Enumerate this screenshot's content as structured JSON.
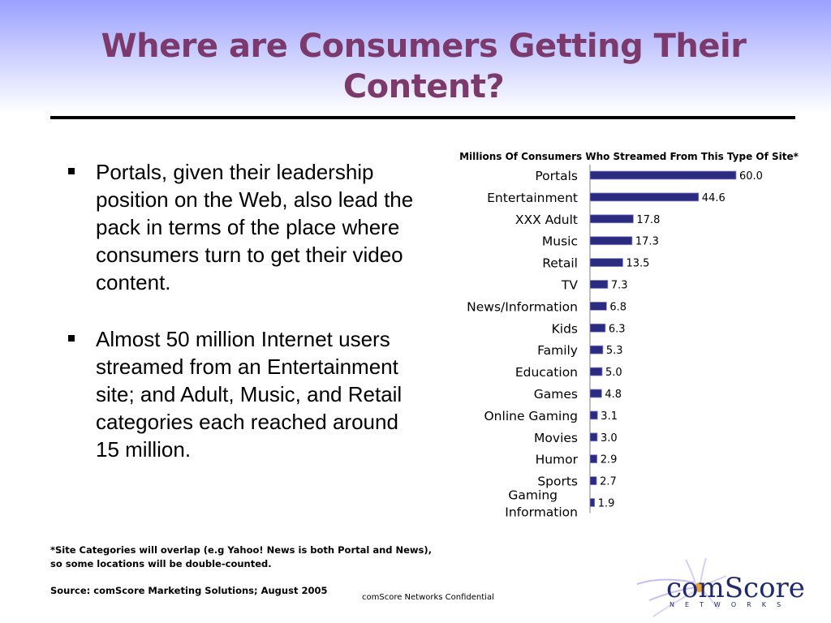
{
  "slide": {
    "title": "Where are Consumers Getting Their Content?",
    "bullets": [
      "Portals, given their leadership position on the Web, also lead the pack in terms of the place where consumers turn to get their video content.",
      "Almost 50 million Internet users streamed from an Entertainment site; and Adult, Music, and Retail categories each reached around 15 million."
    ],
    "footnote_line1": "*Site Categories will overlap (e.g Yahoo! News is both Portal and News),",
    "footnote_line2": "so some locations will be double-counted.",
    "source": "Source: comScore Marketing Solutions; August 2005",
    "confidential": "comScore Networks Confidential",
    "logo": {
      "brand_main": "comScore",
      "brand_sub": "NETWORKS",
      "accent_color": "#1f2a6e",
      "swirl_color": "#b8a8e0"
    }
  },
  "chart_data": {
    "type": "bar",
    "orientation": "horizontal",
    "title": "Millions Of Consumers Who Streamed From This Type Of Site*",
    "categories": [
      "Portals",
      "Entertainment",
      "XXX Adult",
      "Music",
      "Retail",
      "TV",
      "News/Information",
      "Kids",
      "Family",
      "Education",
      "Games",
      "Online Gaming",
      "Movies",
      "Humor",
      "Sports",
      "Gaming Information"
    ],
    "values": [
      60.0,
      44.6,
      17.8,
      17.3,
      13.5,
      7.3,
      6.8,
      6.3,
      5.3,
      5.0,
      4.8,
      3.1,
      3.0,
      2.9,
      2.7,
      1.9
    ],
    "value_labels": [
      "60.0",
      "44.6",
      "17.8",
      "17.3",
      "13.5",
      "7.3",
      "6.8",
      "6.3",
      "5.3",
      "5.0",
      "4.8",
      "3.1",
      "3.0",
      "2.9",
      "2.7",
      "1.9"
    ],
    "xlim": [
      0,
      60
    ],
    "bar_color": "#2b2b80",
    "bar_edge_color": "#8a8ad8",
    "grid": false,
    "legend": "none"
  }
}
